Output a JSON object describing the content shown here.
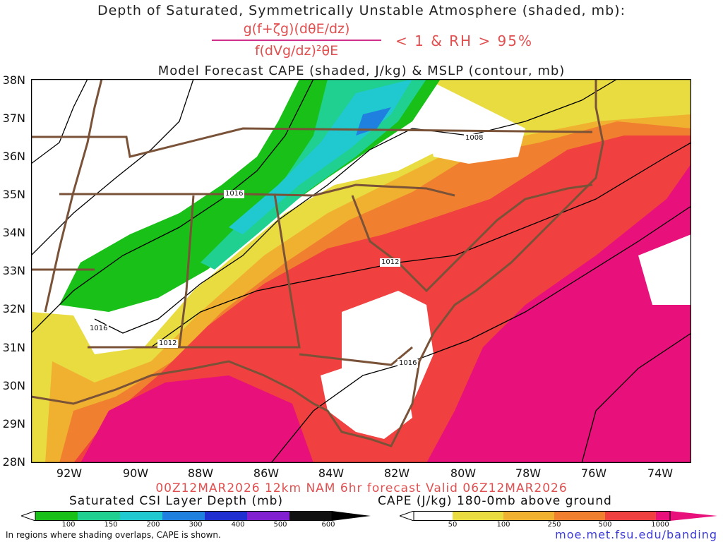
{
  "title_line1": "Depth of Saturated, Symmetrically Unstable Atmosphere (shaded, mb):",
  "formula_numerator": "g(f+ζg)(dθE/dz)",
  "formula_denominator": "f(dVg/dz)²θE",
  "formula_condition": "< 1 & RH > 95%",
  "title_line2": "Model Forecast CAPE (shaded, J/kg) & MSLP (contour, mb)",
  "lat_labels": [
    "38N",
    "37N",
    "36N",
    "35N",
    "34N",
    "33N",
    "32N",
    "31N",
    "30N",
    "29N",
    "28N"
  ],
  "lon_labels": [
    "92W",
    "90W",
    "88W",
    "86W",
    "84W",
    "82W",
    "80W",
    "78W",
    "76W",
    "74W"
  ],
  "contour_labels": [
    "1008",
    "1016",
    "1012",
    "1016",
    "1012",
    "1016"
  ],
  "valid_text": "00Z12MAR2026 12km NAM 6hr forecast Valid 06Z12MAR2026",
  "csi_colorbar": {
    "title": "Saturated CSI Layer Depth (mb)",
    "ticks": [
      "100",
      "150",
      "200",
      "300",
      "400",
      "500",
      "600"
    ],
    "colors": [
      "#ffffff",
      "#18c018",
      "#20d090",
      "#20c8d0",
      "#2080e0",
      "#2030d0",
      "#8020d0",
      "#000000"
    ]
  },
  "cape_colorbar": {
    "title": "CAPE (J/kg) 180-0mb above ground",
    "ticks": [
      "50",
      "100",
      "250",
      "500",
      "1000"
    ],
    "colors": [
      "#ffffff",
      "#e8dc40",
      "#f0b030",
      "#f08030",
      "#f04040",
      "#e8107a"
    ]
  },
  "note": "In regions where shading overlaps, CAPE is shown.",
  "url": "moe.met.fsu.edu/banding",
  "colors": {
    "state_border": "#7a5238",
    "contour": "#000000",
    "cape_50": "#e8dc40",
    "cape_100": "#f0b030",
    "cape_250": "#f08030",
    "cape_500": "#f04040",
    "cape_1000": "#e8107a",
    "csi_green": "#18c018",
    "csi_teal": "#20c8d0",
    "csi_blue": "#2080e0"
  }
}
